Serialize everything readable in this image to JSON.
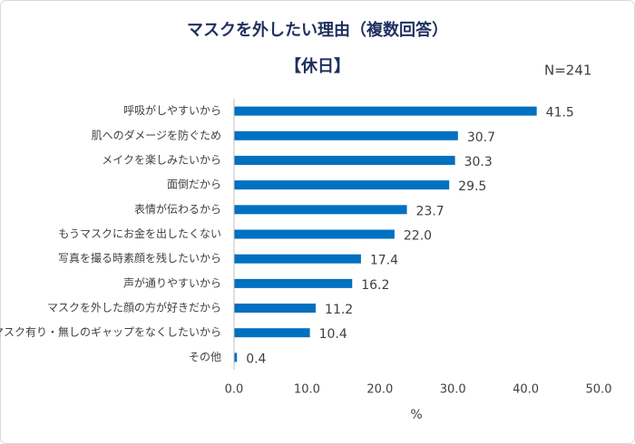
{
  "chart_data": {
    "type": "bar",
    "orientation": "horizontal",
    "title": "マスクを外したい理由（複数回答）",
    "subtitle": "【休日】",
    "annotation": "N=241",
    "x_label": "%",
    "categories": [
      "呼吸がしやすいから",
      "肌へのダメージを防ぐため",
      "メイクを楽しみたいから",
      "面倒だから",
      "表情が伝わるから",
      "もうマスクにお金を出したくない",
      "写真を撮る時素顔を残したいから",
      "声が通りやすいから",
      "マスクを外した顔の方が好きだから",
      "マスク有り・無しのギャップをなくしたいから",
      "その他"
    ],
    "values": [
      41.5,
      30.7,
      30.3,
      29.5,
      23.7,
      22.0,
      17.4,
      16.2,
      11.2,
      10.4,
      0.4
    ],
    "value_labels": [
      "41.5",
      "30.7",
      "30.3",
      "29.5",
      "23.7",
      "22.0",
      "17.4",
      "16.2",
      "11.2",
      "10.4",
      "0.4"
    ],
    "color": "#0070c0",
    "xlim": [
      0,
      50
    ],
    "xticks": [
      {
        "value": 0,
        "label": "0.0"
      },
      {
        "value": 10,
        "label": "10.0"
      },
      {
        "value": 20,
        "label": "20.0"
      },
      {
        "value": 30,
        "label": "30.0"
      },
      {
        "value": 40,
        "label": "40.0"
      },
      {
        "value": 50,
        "label": "50.0"
      }
    ],
    "grid": false
  }
}
